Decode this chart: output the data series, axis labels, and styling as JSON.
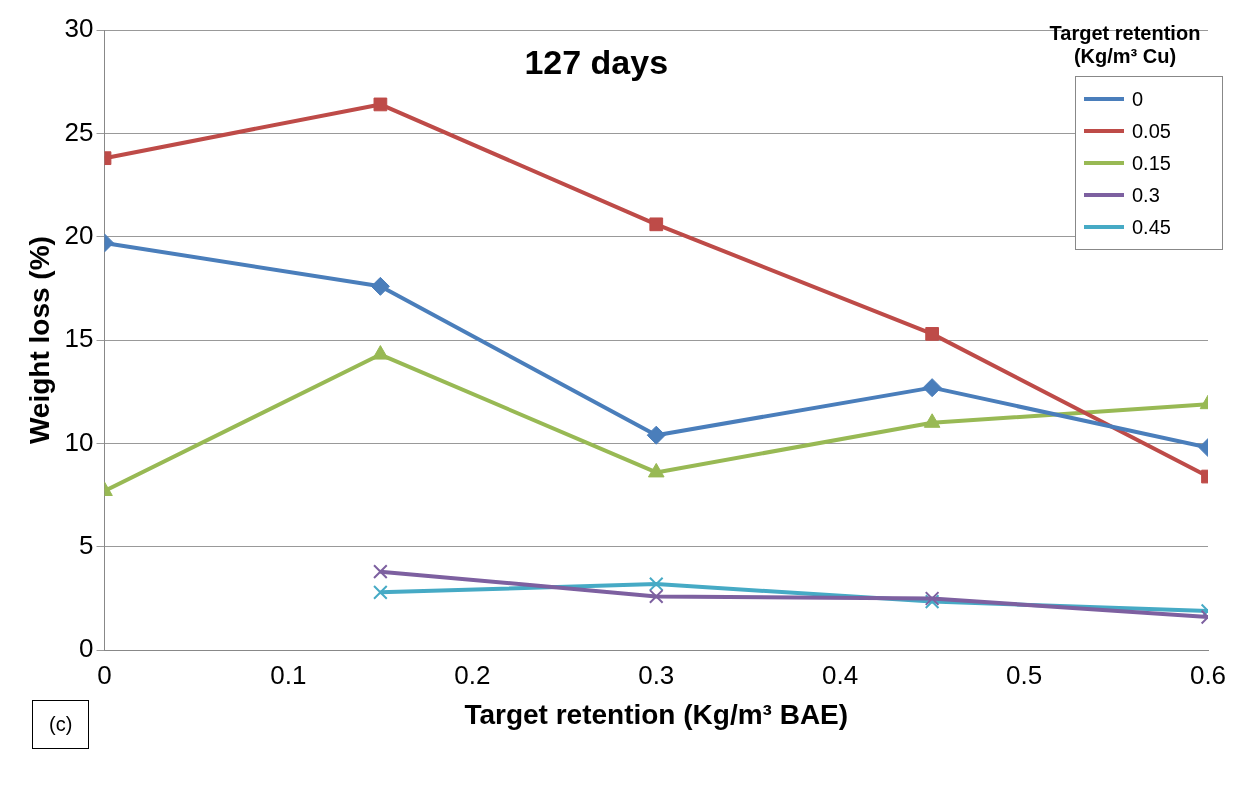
{
  "chart_data": {
    "type": "line",
    "title": "127 days",
    "xlabel": "Target retention (Kg/m³ BAE)",
    "ylabel": "Weight loss (%)",
    "legend_title": "Target retention (Kg/m³ Cu)",
    "x": [
      0,
      0.15,
      0.3,
      0.45,
      0.6
    ],
    "xlim": [
      0,
      0.6
    ],
    "xticks": [
      0,
      0.1,
      0.2,
      0.3,
      0.4,
      0.5,
      0.6
    ],
    "ylim": [
      0,
      30
    ],
    "yticks": [
      0,
      5,
      10,
      15,
      20,
      25,
      30
    ],
    "grid": "y",
    "legend": "right",
    "line_style": "solid",
    "annotations": [
      "(c)"
    ],
    "series": [
      {
        "name": "0",
        "color": "#4a7ebb",
        "marker": "diamond",
        "values": [
          19.7,
          17.6,
          10.4,
          12.7,
          9.8
        ]
      },
      {
        "name": "0.05",
        "color": "#be4b48",
        "marker": "square",
        "values": [
          23.8,
          26.4,
          20.6,
          15.3,
          8.4
        ]
      },
      {
        "name": "0.15",
        "color": "#98b954",
        "marker": "triangle",
        "values": [
          7.7,
          14.3,
          8.6,
          11.0,
          11.9
        ]
      },
      {
        "name": "0.3",
        "color": "#7d60a0",
        "marker": "cross",
        "values": [
          null,
          3.8,
          2.6,
          2.5,
          1.6
        ]
      },
      {
        "name": "0.45",
        "color": "#46aac5",
        "marker": "cross",
        "values": [
          null,
          2.8,
          3.2,
          2.35,
          1.9
        ]
      }
    ]
  }
}
